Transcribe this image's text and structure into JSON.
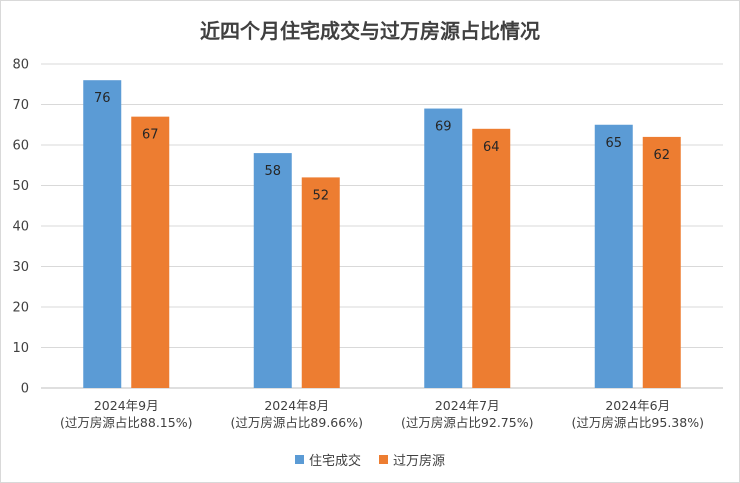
{
  "chart_data": {
    "type": "bar",
    "title": "近四个月住宅成交与过万房源占比情况",
    "categories": [
      [
        "2024年9月",
        "(过万房源占比88.15%)"
      ],
      [
        "2024年8月",
        "(过万房源占比89.66%)"
      ],
      [
        "2024年7月",
        "(过万房源占比92.75%)"
      ],
      [
        "2024年6月",
        "(过万房源占比95.38%)"
      ]
    ],
    "series": [
      {
        "name": "住宅成交",
        "values": [
          76,
          58,
          69,
          65
        ],
        "color": "#5b9bd5"
      },
      {
        "name": "过万房源",
        "values": [
          67,
          52,
          64,
          62
        ],
        "color": "#ed7d31"
      }
    ],
    "yticks": [
      0,
      10,
      20,
      30,
      40,
      50,
      60,
      70,
      80
    ],
    "ylim": [
      0,
      80
    ],
    "grid": true,
    "legend_position": "bottom"
  }
}
